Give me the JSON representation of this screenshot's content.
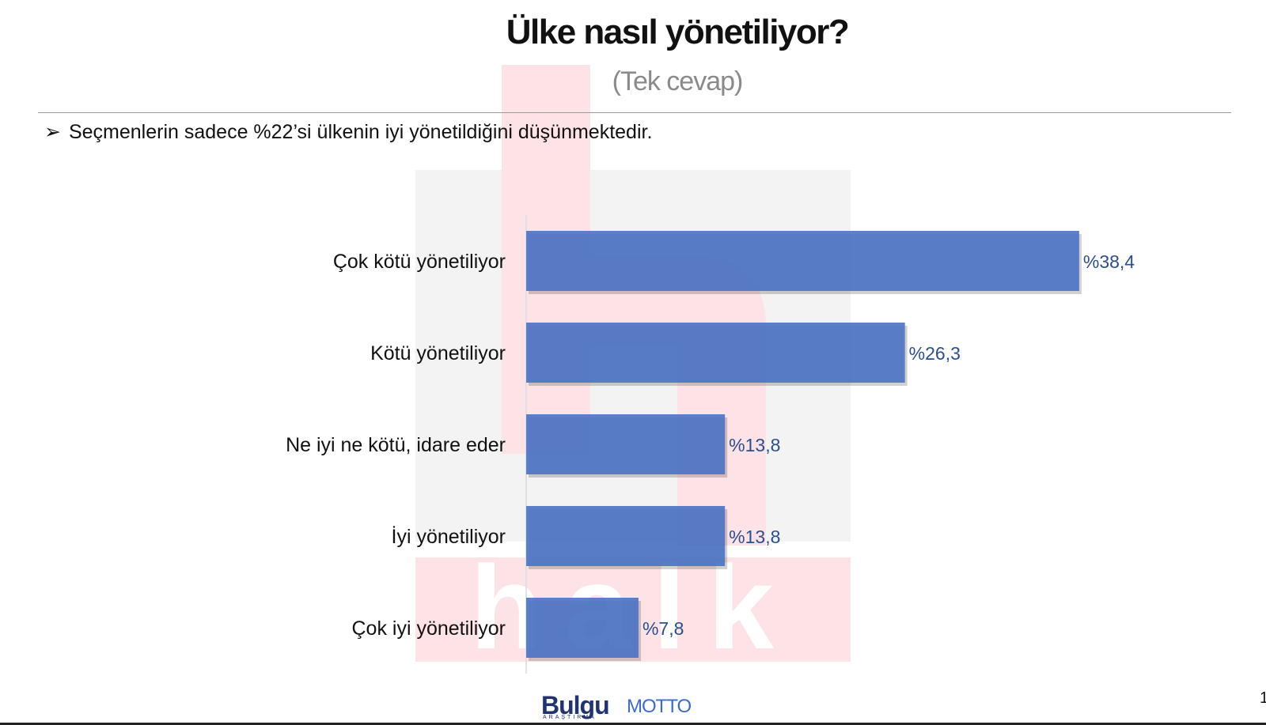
{
  "header": {
    "title": "Ülke nasıl yönetiliyor?",
    "subtitle": "(Tek cevap)",
    "note_bullet": "➢",
    "note": "Seçmenlerin sadece %22’si ülkenin iyi yönetildiğini düşünmektedir."
  },
  "watermark": {
    "text": "halk"
  },
  "chart_data": {
    "type": "bar",
    "orientation": "horizontal",
    "categories": [
      "Çok kötü yönetiliyor",
      "Kötü yönetiliyor",
      "Ne iyi ne kötü, idare eder",
      "İyi yönetiliyor",
      "Çok iyi yönetiliyor"
    ],
    "values": [
      38.4,
      26.3,
      13.8,
      13.8,
      7.8
    ],
    "value_labels": [
      "%38,4",
      "%26,3",
      "%13,8",
      "%13,8",
      "%7,8"
    ],
    "bar_color": "#4a72c4",
    "label_color": "#2a4f8f",
    "grid": false
  },
  "footer": {
    "brand1": "Bulgu",
    "brand1_sub": "ARAŞTIRMA",
    "brand2": "MOTTO",
    "page": "1"
  }
}
